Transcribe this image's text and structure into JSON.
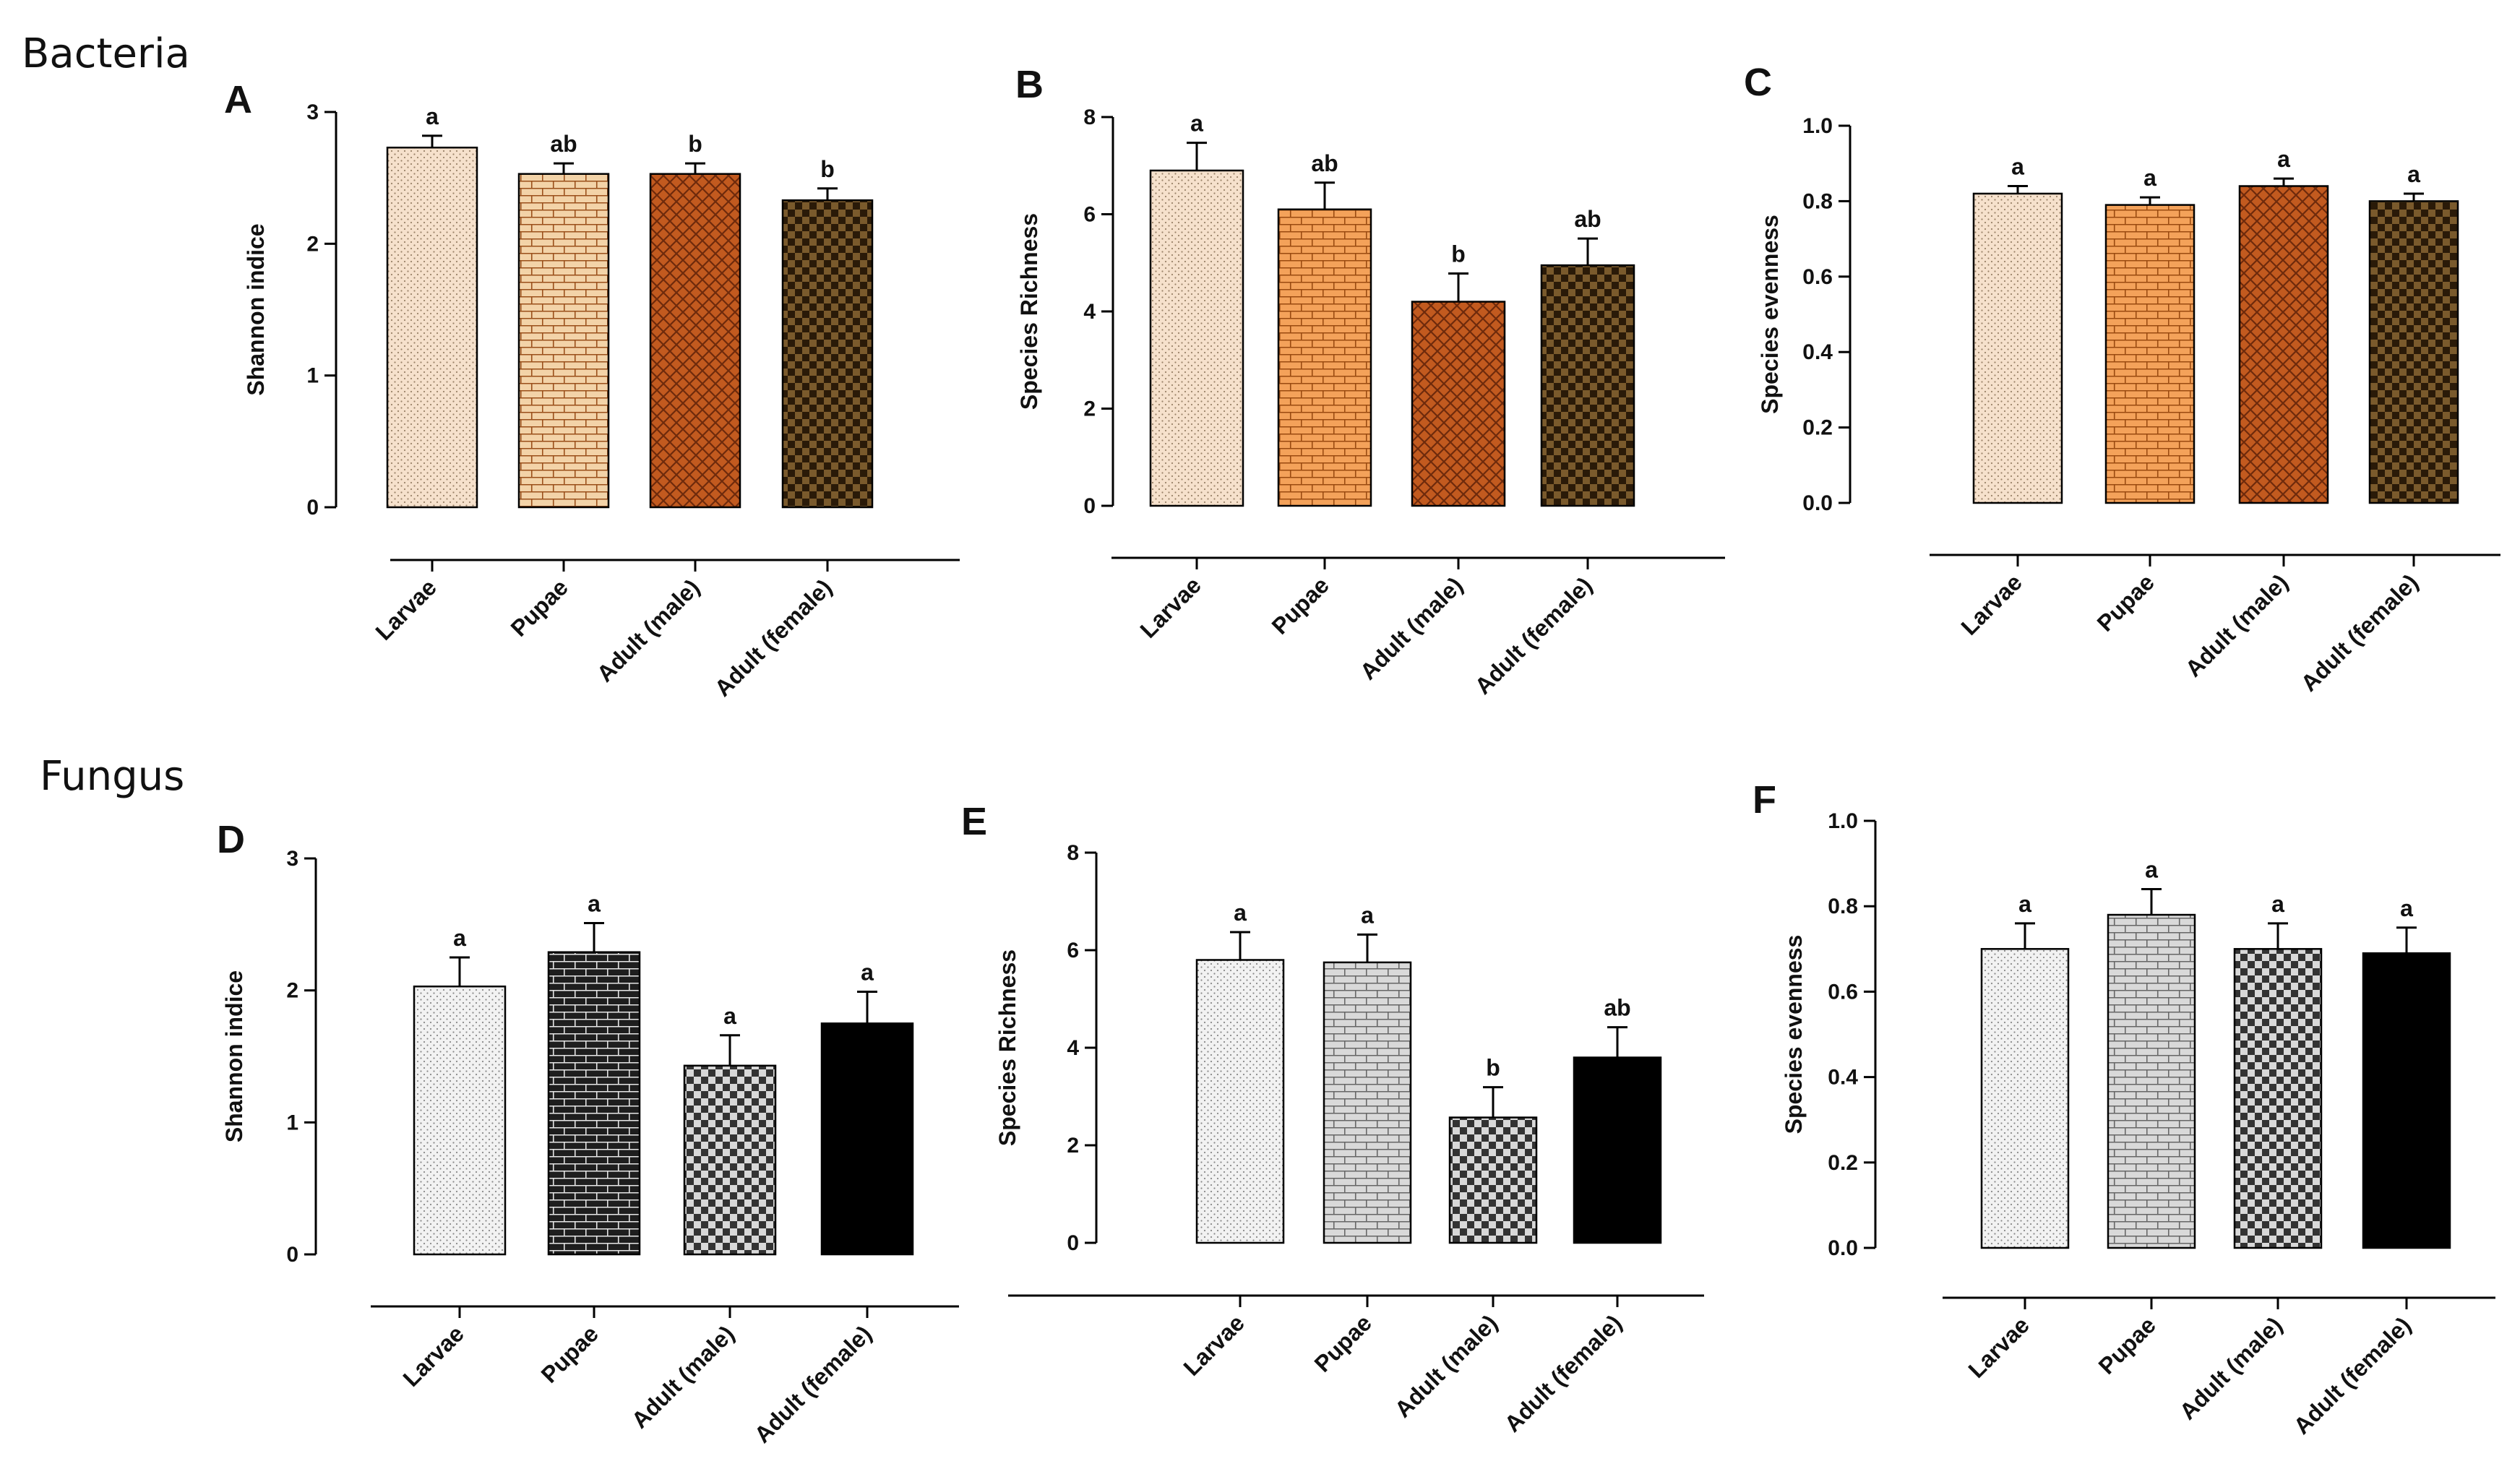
{
  "sections": [
    {
      "title": "Bacteria"
    },
    {
      "title": "Fungus"
    }
  ],
  "chart_data": [
    {
      "panel": "A",
      "type": "bar",
      "ylabel": "Shannon indice",
      "ylim": [
        0,
        3
      ],
      "yticks": [
        "0",
        "1",
        "2",
        "3"
      ],
      "categories": [
        "Larvae",
        "Pupae",
        "Adult (male)",
        "Adult (female)"
      ],
      "values": [
        2.73,
        2.53,
        2.53,
        2.33
      ],
      "errors": [
        0.09,
        0.08,
        0.08,
        0.09
      ],
      "significance": [
        "a",
        "ab",
        "b",
        "b"
      ],
      "colors": [
        "#f6e1cc",
        "#f3d3a8",
        "#c25a1f",
        "#7a5a2c"
      ],
      "patterns": [
        "dots",
        "bricks",
        "weave",
        "checker"
      ],
      "pattern_colors": [
        "#9a8268",
        "#9a4f1a",
        "#6e2a0c",
        "#2a1a08"
      ]
    },
    {
      "panel": "B",
      "type": "bar",
      "ylabel": "Species Richness",
      "ylim": [
        0,
        8
      ],
      "yticks": [
        "0",
        "2",
        "4",
        "6",
        "8"
      ],
      "categories": [
        "Larvae",
        "Pupae",
        "Adult (male)",
        "Adult (female)"
      ],
      "values": [
        6.9,
        6.1,
        4.2,
        4.95
      ],
      "errors": [
        0.57,
        0.55,
        0.58,
        0.55
      ],
      "significance": [
        "a",
        "ab",
        "b",
        "ab"
      ],
      "colors": [
        "#f6e1cc",
        "#f4a25a",
        "#c25a1f",
        "#7a5a2c"
      ],
      "patterns": [
        "dots",
        "bricks",
        "weave",
        "checker"
      ],
      "pattern_colors": [
        "#9a8268",
        "#9a4a10",
        "#6e2a0c",
        "#2a1a08"
      ]
    },
    {
      "panel": "C",
      "type": "bar",
      "ylabel": "Species evenness",
      "ylim": [
        0,
        1.0
      ],
      "yticks": [
        "0.0",
        "0.2",
        "0.4",
        "0.6",
        "0.8",
        "1.0"
      ],
      "categories": [
        "Larvae",
        "Pupae",
        "Adult (male)",
        "Adult (female)"
      ],
      "values": [
        0.82,
        0.79,
        0.84,
        0.8
      ],
      "errors": [
        0.02,
        0.02,
        0.02,
        0.02
      ],
      "significance": [
        "a",
        "a",
        "a",
        "a"
      ],
      "colors": [
        "#f6e1cc",
        "#f4a25a",
        "#c25a1f",
        "#7a5a2c"
      ],
      "patterns": [
        "dots",
        "bricks",
        "weave",
        "checker"
      ],
      "pattern_colors": [
        "#9a8268",
        "#9a4a10",
        "#6e2a0c",
        "#2a1a08"
      ]
    },
    {
      "panel": "D",
      "type": "bar",
      "ylabel": "Shannon indice",
      "ylim": [
        0,
        3
      ],
      "yticks": [
        "0",
        "1",
        "2",
        "3"
      ],
      "categories": [
        "Larvae",
        "Pupae",
        "Adult (male)",
        "Adult (female)"
      ],
      "values": [
        2.03,
        2.29,
        1.43,
        1.75
      ],
      "errors": [
        0.22,
        0.22,
        0.23,
        0.24
      ],
      "significance": [
        "a",
        "a",
        "a",
        "a"
      ],
      "colors": [
        "#f2f2f2",
        "#1e1e1e",
        "#d8d8d8",
        "#000000"
      ],
      "patterns": [
        "dots",
        "bricks",
        "checker",
        "solid"
      ],
      "pattern_colors": [
        "#888888",
        "#e6e6e6",
        "#333333",
        "#000000"
      ]
    },
    {
      "panel": "E",
      "type": "bar",
      "ylabel": "Species Richness",
      "ylim": [
        0,
        8
      ],
      "yticks": [
        "0",
        "2",
        "4",
        "6",
        "8"
      ],
      "categories": [
        "Larvae",
        "Pupae",
        "Adult (male)",
        "Adult (female)"
      ],
      "values": [
        5.8,
        5.75,
        2.57,
        3.8
      ],
      "errors": [
        0.57,
        0.57,
        0.62,
        0.62
      ],
      "significance": [
        "a",
        "a",
        "b",
        "ab"
      ],
      "colors": [
        "#f2f2f2",
        "#d9d9d9",
        "#d8d8d8",
        "#000000"
      ],
      "patterns": [
        "dots",
        "bricks",
        "checker",
        "solid"
      ],
      "pattern_colors": [
        "#888888",
        "#666666",
        "#333333",
        "#000000"
      ]
    },
    {
      "panel": "F",
      "type": "bar",
      "ylabel": "Species evenness",
      "ylim": [
        0,
        1.0
      ],
      "yticks": [
        "0.0",
        "0.2",
        "0.4",
        "0.6",
        "0.8",
        "1.0"
      ],
      "categories": [
        "Larvae",
        "Pupae",
        "Adult (male)",
        "Adult (female)"
      ],
      "values": [
        0.7,
        0.78,
        0.7,
        0.69
      ],
      "errors": [
        0.06,
        0.06,
        0.06,
        0.06
      ],
      "significance": [
        "a",
        "a",
        "a",
        "a"
      ],
      "colors": [
        "#f2f2f2",
        "#d9d9d9",
        "#d8d8d8",
        "#000000"
      ],
      "patterns": [
        "dots",
        "bricks",
        "checker",
        "solid"
      ],
      "pattern_colors": [
        "#888888",
        "#666666",
        "#333333",
        "#000000"
      ]
    }
  ]
}
